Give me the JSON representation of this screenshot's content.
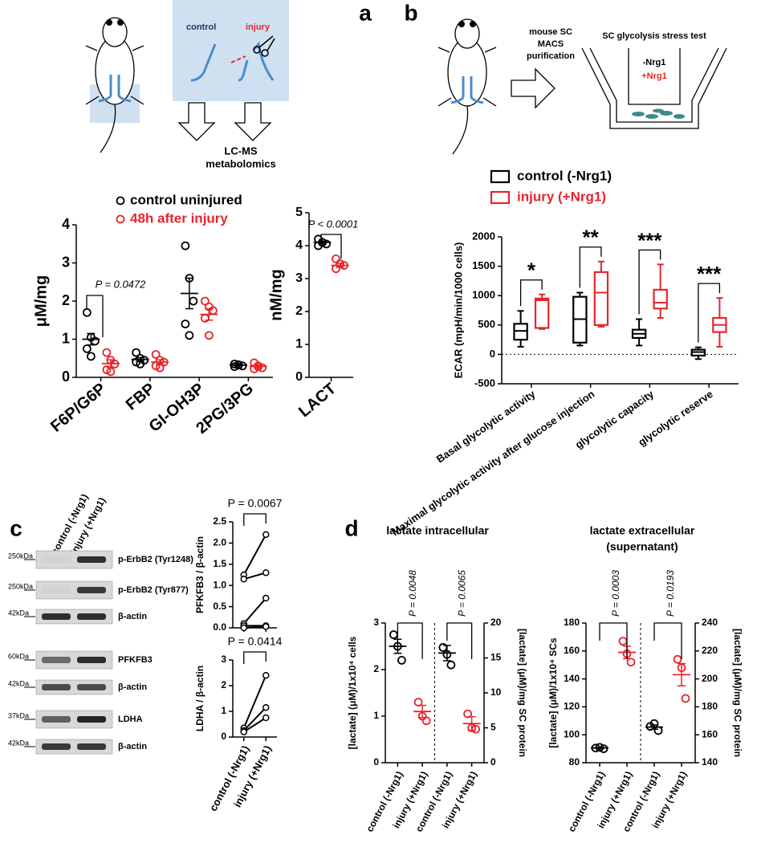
{
  "panel_labels": [
    "a",
    "b",
    "c",
    "d"
  ],
  "diagram_a": {
    "control": "control",
    "injury": "injury",
    "output": [
      "LC-MS",
      "metabolomics"
    ]
  },
  "diagram_b": {
    "step": [
      "mouse SC",
      "MACS",
      "purification"
    ],
    "assay": "SC glycolysis stress test",
    "conditions": [
      "-Nrg1",
      "+Nrg1"
    ]
  },
  "blot": {
    "columns": [
      "control (-Nrg1)",
      "injury (+Nrg1)"
    ],
    "rows": [
      {
        "size": "250kDa",
        "label": "p-ErbB2 (Tyr1248)"
      },
      {
        "size": "250kDa",
        "label": "p-ErbB2 (Tyr877)"
      },
      {
        "size": "42kDa",
        "label": "β-actin"
      },
      {
        "size": "60kDa",
        "label": "PFKFB3"
      },
      {
        "size": "42kDa",
        "label": "β-actin"
      },
      {
        "size": "37kDa",
        "label": "LDHA"
      },
      {
        "size": "42kDa",
        "label": "β-actin"
      }
    ]
  },
  "chart_data": [
    {
      "type": "dot",
      "ylabel": "μM/mg",
      "categories": [
        "F6P/G6P",
        "FBP",
        "GI-OH3P",
        "2PG/3PG"
      ],
      "ylim": [
        0,
        4
      ],
      "yticks": [
        0,
        1,
        2,
        3,
        4
      ],
      "series": [
        {
          "name": "control uninjured",
          "color": "#000000",
          "values": [
            [
              1.7,
              1.05,
              0.95,
              0.75,
              0.55
            ],
            [
              0.65,
              0.5,
              0.45,
              0.4,
              0.35
            ],
            [
              3.45,
              2.6,
              2.0,
              1.4,
              1.1
            ],
            [
              0.35,
              0.33,
              0.3,
              0.28,
              0.32
            ]
          ],
          "means": [
            1.0,
            0.47,
            2.2,
            0.32
          ],
          "errors": [
            0.15,
            0.05,
            0.4,
            0.02
          ]
        },
        {
          "name": "48h after injury",
          "color": "#e8242a",
          "values": [
            [
              0.65,
              0.45,
              0.35,
              0.2,
              0.15
            ],
            [
              0.6,
              0.45,
              0.4,
              0.3,
              0.25
            ],
            [
              2.0,
              1.85,
              1.75,
              1.55,
              1.1
            ],
            [
              0.38,
              0.3,
              0.25,
              0.22,
              0.28
            ]
          ],
          "means": [
            0.36,
            0.4,
            1.65,
            0.29
          ],
          "errors": [
            0.1,
            0.06,
            0.15,
            0.03
          ]
        }
      ],
      "annotations": [
        "P = 0.0472"
      ]
    },
    {
      "type": "dot",
      "ylabel": "nM/mg",
      "categories": [
        "LACT"
      ],
      "ylim": [
        0,
        5
      ],
      "yticks": [
        0,
        1,
        2,
        3,
        4,
        5
      ],
      "series": [
        {
          "color": "#000000",
          "values": [
            [
              4.2,
              4.1,
              4.05,
              4.0,
              4.1
            ]
          ],
          "means": [
            4.1
          ],
          "errors": [
            0.04
          ]
        },
        {
          "color": "#e8242a",
          "values": [
            [
              3.6,
              3.45,
              3.4,
              3.3,
              3.45
            ]
          ],
          "means": [
            3.4
          ],
          "errors": [
            0.06
          ]
        }
      ],
      "annotations": [
        "P < 0.0001"
      ]
    },
    {
      "type": "box",
      "ylabel": "ECAR (mpH/min/1000 cells)",
      "categories": [
        "Basal glycolytic activity",
        "Maximal glycolytic activity after glucose injection",
        "glycolytic capacity",
        "glycolytic reserve"
      ],
      "ylim": [
        -500,
        2000
      ],
      "yticks": [
        -500,
        0,
        500,
        1000,
        1500,
        2000
      ],
      "zero_line": true,
      "series": [
        {
          "name": "control (-Nrg1)",
          "color": "#000000",
          "boxes": [
            [
              130,
              250,
              400,
              520,
              740
            ],
            [
              150,
              200,
              600,
              980,
              1050
            ],
            [
              150,
              280,
              350,
              420,
              600
            ],
            [
              -80,
              -20,
              40,
              80,
              120
            ]
          ]
        },
        {
          "name": "injury (+Nrg1)",
          "color": "#e8242a",
          "boxes": [
            [
              430,
              450,
              920,
              950,
              1020
            ],
            [
              470,
              500,
              1050,
              1400,
              1580
            ],
            [
              620,
              780,
              880,
              1100,
              1530
            ],
            [
              130,
              380,
              500,
              620,
              960
            ]
          ]
        }
      ],
      "annotations": [
        "*",
        "**",
        "***",
        "***"
      ]
    },
    {
      "type": "paired",
      "ylabel": "PFKFB3 / β-actin",
      "ylim": [
        0,
        2.5
      ],
      "yticks": [
        {
          "value": 0,
          "label": "0.0"
        },
        0.5,
        {
          "value": 1,
          "label": "1.0"
        },
        1.5,
        {
          "value": 2,
          "label": "2.0"
        },
        2.5
      ],
      "lines": [
        [
          1.25,
          2.2
        ],
        [
          1.15,
          1.3
        ],
        [
          0.1,
          0.7
        ],
        [
          0.05,
          0.05
        ],
        [
          0.0,
          0.03
        ]
      ],
      "annotations": [
        "P = 0.0067"
      ]
    },
    {
      "type": "paired",
      "ylabel": "LDHA / β-actin",
      "categories": [
        "control (-Nrg1)",
        "injury (+Nrg1)"
      ],
      "ylim": [
        0,
        3
      ],
      "yticks": [
        0,
        1,
        2,
        3
      ],
      "lines": [
        [
          0.35,
          2.4
        ],
        [
          0.25,
          1.15
        ],
        [
          0.2,
          0.75
        ]
      ],
      "annotations": [
        "P = 0.0414"
      ]
    },
    {
      "type": "dot",
      "title": [
        "lactate intracellular"
      ],
      "ylabel": "[lactate] (μM)/1x10⁴ cells",
      "y2label": "[lactate] (μM)/mg SC protein",
      "categories": [
        "control (-Nrg1)",
        "injury (+Nrg1)",
        "control (-Nrg1)",
        "injury (+Nrg1)"
      ],
      "ylim": [
        0,
        3
      ],
      "yticks": [
        0,
        1,
        2,
        3
      ],
      "y2lim": [
        0,
        20
      ],
      "y2ticks": [
        0,
        5,
        10,
        15,
        20
      ],
      "series": [
        {
          "color": "#000000",
          "values": [
            [
              2.75,
              2.5,
              2.2
            ],
            null,
            null,
            null
          ],
          "means": [
            2.5,
            null,
            null,
            null
          ],
          "errors": [
            0.15,
            null,
            null,
            null
          ]
        },
        {
          "color": "#e8242a",
          "values": [
            null,
            [
              1.3,
              1.0,
              0.9
            ],
            null,
            null
          ],
          "means": [
            null,
            1.1,
            null,
            null
          ],
          "errors": [
            null,
            0.13,
            null,
            null
          ]
        },
        {
          "color": "#000000",
          "axis": "y2",
          "values": [
            null,
            null,
            [
              16.5,
              15.5,
              14
            ],
            null
          ],
          "means": [
            null,
            null,
            15.7,
            null
          ],
          "errors": [
            null,
            null,
            1.1,
            null
          ]
        },
        {
          "color": "#e8242a",
          "axis": "y2",
          "values": [
            null,
            null,
            null,
            [
              7,
              5,
              4.8
            ]
          ],
          "means": [
            null,
            null,
            null,
            5.6
          ],
          "errors": [
            null,
            null,
            null,
            1.0
          ]
        }
      ],
      "annotations": [
        "P = 0.0048",
        "P = 0.0065"
      ]
    },
    {
      "type": "dot",
      "title": [
        "lactate extracellular",
        "(supernatant)"
      ],
      "ylabel": "[lactate] (μM)/1x10⁴ SCs",
      "y2label": "[lactate] (μM)/mg SC protein",
      "categories": [
        "control (-Nrg1)",
        "injury (+Nrg1)",
        "control (-Nrg1)",
        "injury (+Nrg1)"
      ],
      "ylim": [
        80,
        180
      ],
      "yticks": [
        80,
        100,
        120,
        140,
        160,
        180
      ],
      "y2lim": [
        140,
        240
      ],
      "y2ticks": [
        140,
        160,
        180,
        200,
        220,
        240
      ],
      "series": [
        {
          "color": "#000000",
          "values": [
            [
              90.5,
              91,
              90
            ],
            null,
            null,
            null
          ],
          "means": [
            90.6,
            null,
            null,
            null
          ],
          "errors": [
            0.3,
            null,
            null,
            null
          ]
        },
        {
          "color": "#e8242a",
          "values": [
            null,
            [
              167,
              158,
              152
            ],
            null,
            null
          ],
          "means": [
            null,
            159,
            null,
            null
          ],
          "errors": [
            null,
            4.5,
            null,
            null
          ]
        },
        {
          "color": "#000000",
          "axis": "y2",
          "values": [
            null,
            null,
            [
              166,
              168,
              163
            ],
            null
          ],
          "means": [
            null,
            null,
            165.5,
            null
          ],
          "errors": [
            null,
            null,
            1.5,
            null
          ]
        },
        {
          "color": "#e8242a",
          "axis": "y2",
          "values": [
            null,
            null,
            null,
            [
              214,
              208,
              186
            ]
          ],
          "means": [
            null,
            null,
            null,
            203
          ],
          "errors": [
            null,
            null,
            null,
            8
          ]
        }
      ],
      "annotations": [
        "P = 0.0003",
        "P = 0.0193"
      ]
    }
  ]
}
